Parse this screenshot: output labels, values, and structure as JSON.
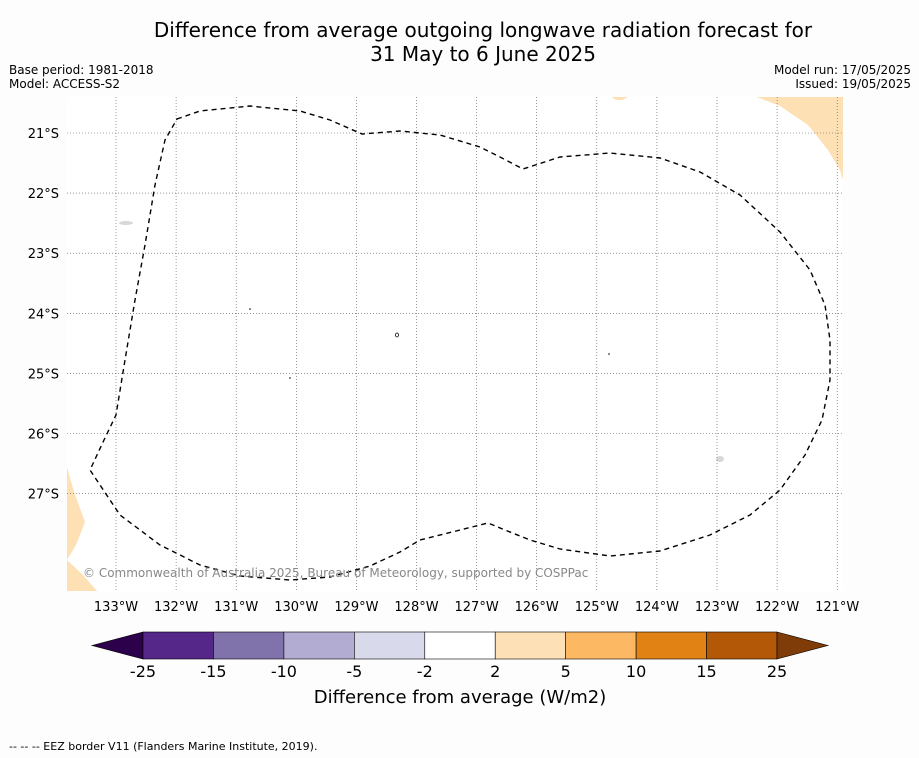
{
  "title_line1": "Difference from average outgoing longwave radiation forecast for",
  "title_line2": "31 May to 6 June 2025",
  "base_period": "Base period: 1981-2018",
  "model": "Model: ACCESS-S2",
  "model_run": "Model run: 17/05/2025",
  "issued": "Issued: 19/05/2025",
  "copyright": "© Commonwealth of Australia 2025, Bureau of Meteorology, supported by COSPPac",
  "footer": "--  --  -- EEZ border V11 (Flanders Marine Institute, 2019).",
  "map": {
    "lon_labels": [
      "133°W",
      "132°W",
      "131°W",
      "130°W",
      "129°W",
      "128°W",
      "127°W",
      "126°W",
      "125°W",
      "124°W",
      "123°W",
      "122°W",
      "121°W"
    ],
    "lat_labels": [
      "21°S",
      "22°S",
      "23°S",
      "24°S",
      "25°S",
      "26°S",
      "27°S"
    ],
    "land_color": "#fde0b4",
    "eez_line": "dashed"
  },
  "colorbar": {
    "title": "Difference from average (W/m2)",
    "tick_labels": [
      "-25",
      "-15",
      "-10",
      "-5",
      "-2",
      "2",
      "5",
      "10",
      "15",
      "25"
    ],
    "colors": [
      "#2d004b",
      "#542788",
      "#8073ac",
      "#b2abd2",
      "#d8daeb",
      "#ffffff",
      "#fee0b6",
      "#fdb863",
      "#e08214",
      "#b35806",
      "#7f3b08"
    ]
  }
}
